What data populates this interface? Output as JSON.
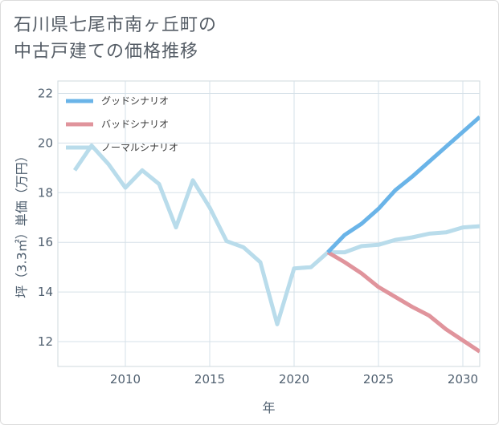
{
  "title_line1": "石川県七尾市南ヶ丘町の",
  "title_line2": "中古戸建ての価格推移",
  "chart_data": {
    "type": "line",
    "title": "石川県七尾市南ヶ丘町の中古戸建ての価格推移",
    "xlabel": "年",
    "ylabel": "坪（3.3㎡）単価（万円）",
    "xlim": [
      2006,
      2031
    ],
    "ylim": [
      11,
      22.5
    ],
    "xticks": [
      2010,
      2015,
      2020,
      2025,
      2030
    ],
    "yticks": [
      12,
      14,
      16,
      18,
      20,
      22
    ],
    "grid": true,
    "legend_position": "top-left",
    "series": [
      {
        "name": "グッドシナリオ",
        "color": "#6ab4e8",
        "x": [
          2022,
          2023,
          2024,
          2025,
          2026,
          2027,
          2028,
          2029,
          2030,
          2031
        ],
        "values": [
          15.6,
          16.3,
          16.75,
          17.35,
          18.1,
          18.65,
          19.25,
          19.85,
          20.45,
          21.05
        ]
      },
      {
        "name": "バッドシナリオ",
        "color": "#e0949c",
        "x": [
          2022,
          2023,
          2024,
          2025,
          2026,
          2027,
          2028,
          2029,
          2030,
          2031
        ],
        "values": [
          15.6,
          15.2,
          14.75,
          14.2,
          13.8,
          13.4,
          13.05,
          12.5,
          12.05,
          11.6
        ]
      },
      {
        "name": "ノーマルシナリオ",
        "color": "#b9dceb",
        "x": [
          2007,
          2008,
          2009,
          2010,
          2011,
          2012,
          2013,
          2014,
          2015,
          2016,
          2017,
          2018,
          2019,
          2020,
          2021,
          2022,
          2023,
          2024,
          2025,
          2026,
          2027,
          2028,
          2029,
          2030,
          2031
        ],
        "values": [
          18.9,
          19.9,
          19.15,
          18.2,
          18.9,
          18.35,
          16.6,
          18.5,
          17.4,
          16.05,
          15.8,
          15.2,
          12.7,
          14.95,
          15.0,
          15.6,
          15.6,
          15.85,
          15.9,
          16.1,
          16.2,
          16.35,
          16.4,
          16.6,
          16.65
        ]
      }
    ]
  }
}
